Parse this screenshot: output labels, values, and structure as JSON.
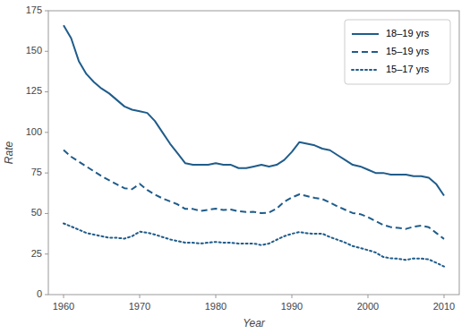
{
  "chart_data": {
    "type": "line",
    "xlabel": "Year",
    "ylabel": "Rate",
    "x": [
      1960,
      1961,
      1962,
      1963,
      1964,
      1965,
      1966,
      1967,
      1968,
      1969,
      1970,
      1971,
      1972,
      1973,
      1974,
      1975,
      1976,
      1977,
      1978,
      1979,
      1980,
      1981,
      1982,
      1983,
      1984,
      1985,
      1986,
      1987,
      1988,
      1989,
      1990,
      1991,
      1992,
      1993,
      1994,
      1995,
      1996,
      1997,
      1998,
      1999,
      2000,
      2001,
      2002,
      2003,
      2004,
      2005,
      2006,
      2007,
      2008,
      2009,
      2010
    ],
    "series": [
      {
        "name": "18–19 yrs",
        "color": "#1F5C8B",
        "line_style": "solid",
        "values": [
          166,
          158,
          144,
          136,
          131,
          127,
          124,
          120,
          116,
          114,
          113,
          112,
          107,
          100,
          93,
          87,
          81,
          80,
          80,
          80,
          81,
          80,
          80,
          78,
          78,
          79,
          80,
          79,
          80,
          83,
          88,
          94,
          93,
          92,
          90,
          89,
          86,
          83,
          80,
          79,
          77,
          75,
          75,
          74,
          74,
          74,
          73,
          73,
          72,
          68,
          61
        ]
      },
      {
        "name": "15–19 yrs",
        "color": "#1F5C8B",
        "line_style": "dashed",
        "values": [
          89.1,
          85,
          82,
          79,
          76,
          73,
          70.5,
          68,
          65.6,
          65,
          68.3,
          64.5,
          61.7,
          59.3,
          57.5,
          55.6,
          52.8,
          52.8,
          51.5,
          52.3,
          53,
          52.2,
          52.4,
          51.4,
          50.9,
          51,
          50.2,
          50.6,
          53.0,
          57.3,
          59.9,
          61.8,
          60.7,
          59.6,
          58.9,
          56.8,
          54.4,
          52.3,
          50.3,
          49.6,
          47.7,
          45.3,
          43.0,
          41.6,
          41.1,
          40.5,
          41.9,
          42.5,
          41.5,
          37.9,
          34.3
        ]
      },
      {
        "name": "15–17 yrs",
        "color": "#1F5C8B",
        "line_style": "dotted",
        "values": [
          43.9,
          42,
          40,
          38,
          37,
          36,
          35,
          35,
          34.5,
          36,
          38.8,
          38.2,
          37,
          35.5,
          34,
          33,
          32,
          32,
          31.5,
          32,
          32.5,
          32,
          32,
          31.5,
          31.5,
          31.5,
          30.5,
          31.5,
          33.8,
          36,
          37.5,
          38.6,
          37.8,
          37.5,
          37.6,
          35.5,
          33.8,
          32.1,
          29.9,
          28.7,
          27.4,
          26,
          23.2,
          22.4,
          22.1,
          21.4,
          22.3,
          22.2,
          21.7,
          19.6,
          17.3
        ]
      }
    ],
    "xlim": [
      1958,
      2012
    ],
    "xticks": [
      1960,
      1970,
      1980,
      1990,
      2000,
      2010
    ],
    "ylim": [
      0,
      175
    ],
    "yticks": [
      0,
      25,
      50,
      75,
      100,
      125,
      150,
      175
    ],
    "grid": false,
    "legend": "upper right"
  }
}
